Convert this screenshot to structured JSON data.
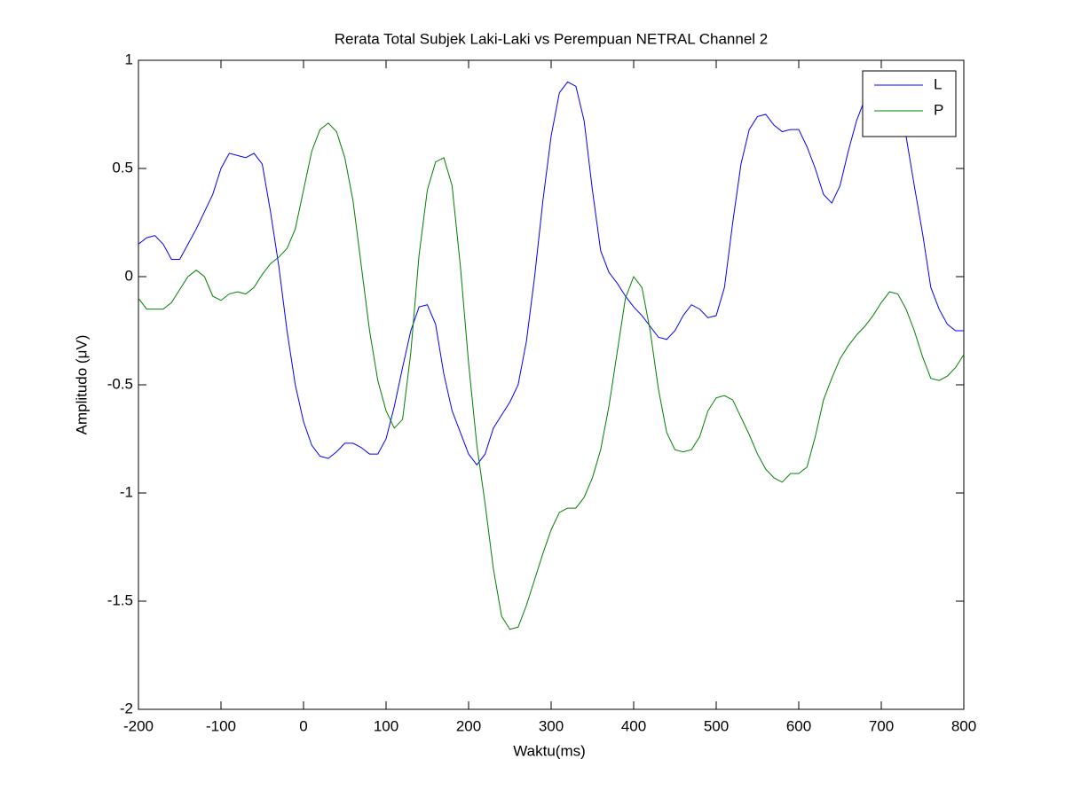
{
  "chart_data": {
    "type": "line",
    "title": "Rerata Total Subjek Laki-Laki vs Perempuan NETRAL Channel 2",
    "xlabel": "Waktu(ms)",
    "ylabel": "Amplitudo (μV)",
    "x": [
      -200,
      -190,
      -180,
      -170,
      -160,
      -150,
      -140,
      -130,
      -120,
      -110,
      -100,
      -90,
      -80,
      -70,
      -60,
      -50,
      -40,
      -30,
      -20,
      -10,
      0,
      10,
      20,
      30,
      40,
      50,
      60,
      70,
      80,
      90,
      100,
      110,
      120,
      130,
      140,
      150,
      160,
      170,
      180,
      190,
      200,
      210,
      220,
      230,
      240,
      250,
      260,
      270,
      280,
      290,
      300,
      310,
      320,
      330,
      340,
      350,
      360,
      370,
      380,
      390,
      400,
      410,
      420,
      430,
      440,
      450,
      460,
      470,
      480,
      490,
      500,
      510,
      520,
      530,
      540,
      550,
      560,
      570,
      580,
      590,
      600,
      610,
      620,
      630,
      640,
      650,
      660,
      670,
      680,
      690,
      700,
      710,
      720,
      730,
      740,
      750,
      760,
      770,
      780,
      790,
      800
    ],
    "series": [
      {
        "name": "L",
        "color": "#0000ff",
        "values": [
          0.15,
          0.18,
          0.19,
          0.15,
          0.08,
          0.08,
          0.15,
          0.22,
          0.3,
          0.38,
          0.5,
          0.57,
          0.56,
          0.55,
          0.57,
          0.52,
          0.3,
          0.05,
          -0.25,
          -0.5,
          -0.67,
          -0.78,
          -0.83,
          -0.84,
          -0.81,
          -0.77,
          -0.77,
          -0.79,
          -0.82,
          -0.82,
          -0.75,
          -0.6,
          -0.42,
          -0.25,
          -0.14,
          -0.13,
          -0.22,
          -0.45,
          -0.62,
          -0.72,
          -0.82,
          -0.87,
          -0.82,
          -0.7,
          -0.64,
          -0.58,
          -0.5,
          -0.3,
          0.0,
          0.35,
          0.65,
          0.85,
          0.9,
          0.88,
          0.72,
          0.4,
          0.12,
          0.02,
          -0.03,
          -0.09,
          -0.14,
          -0.18,
          -0.23,
          -0.28,
          -0.29,
          -0.25,
          -0.18,
          -0.13,
          -0.15,
          -0.19,
          -0.18,
          -0.05,
          0.25,
          0.52,
          0.68,
          0.74,
          0.75,
          0.7,
          0.67,
          0.68,
          0.68,
          0.6,
          0.5,
          0.38,
          0.34,
          0.42,
          0.58,
          0.72,
          0.82,
          0.85,
          0.84,
          0.82,
          0.78,
          0.65,
          0.42,
          0.2,
          -0.05,
          -0.15,
          -0.22,
          -0.25,
          -0.25
        ]
      },
      {
        "name": "P",
        "color": "#008000",
        "values": [
          -0.1,
          -0.15,
          -0.15,
          -0.15,
          -0.12,
          -0.06,
          0.0,
          0.03,
          0.0,
          -0.09,
          -0.11,
          -0.08,
          -0.07,
          -0.08,
          -0.05,
          0.01,
          0.06,
          0.09,
          0.13,
          0.22,
          0.4,
          0.58,
          0.68,
          0.71,
          0.67,
          0.55,
          0.35,
          0.05,
          -0.25,
          -0.48,
          -0.62,
          -0.7,
          -0.66,
          -0.35,
          0.1,
          0.4,
          0.53,
          0.55,
          0.42,
          0.05,
          -0.4,
          -0.78,
          -1.05,
          -1.35,
          -1.57,
          -1.63,
          -1.62,
          -1.52,
          -1.4,
          -1.28,
          -1.17,
          -1.09,
          -1.07,
          -1.07,
          -1.02,
          -0.93,
          -0.8,
          -0.6,
          -0.35,
          -0.1,
          0.0,
          -0.05,
          -0.25,
          -0.52,
          -0.72,
          -0.8,
          -0.81,
          -0.8,
          -0.74,
          -0.62,
          -0.56,
          -0.55,
          -0.57,
          -0.65,
          -0.73,
          -0.82,
          -0.89,
          -0.93,
          -0.95,
          -0.91,
          -0.91,
          -0.88,
          -0.74,
          -0.57,
          -0.47,
          -0.38,
          -0.32,
          -0.27,
          -0.23,
          -0.18,
          -0.12,
          -0.07,
          -0.08,
          -0.15,
          -0.25,
          -0.37,
          -0.47,
          -0.48,
          -0.46,
          -0.42,
          -0.36
        ]
      }
    ],
    "xlim": [
      -200,
      800
    ],
    "xticks": [
      -200,
      -100,
      0,
      100,
      200,
      300,
      400,
      500,
      600,
      700,
      800
    ],
    "ylim": [
      -2,
      1
    ],
    "yticks": [
      -2,
      -1.5,
      -1,
      -0.5,
      0,
      0.5,
      1
    ],
    "grid": false,
    "legend": "top-right"
  }
}
